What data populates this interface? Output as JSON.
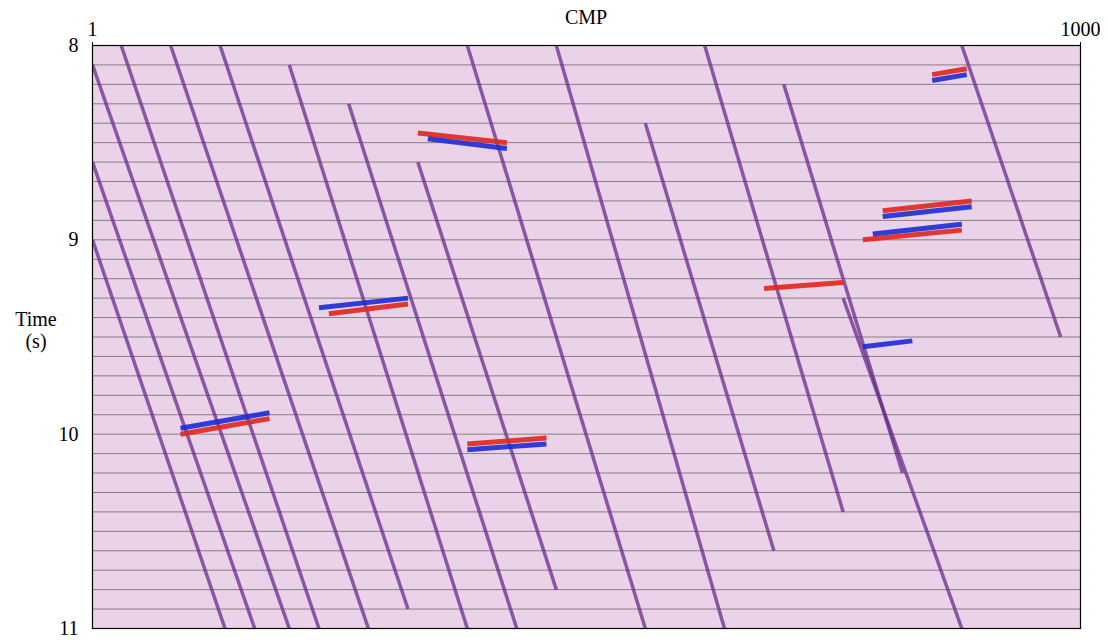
{
  "chart_data": {
    "type": "seismic_section",
    "x_label": "CMP",
    "y_label": "Time (s)",
    "xlim": [
      1,
      1000
    ],
    "xticks": [
      1,
      1000
    ],
    "ylim": [
      8,
      11
    ],
    "yticks": [
      8,
      9,
      10,
      11
    ],
    "grid": true,
    "y_gridlines": [
      8.0,
      8.1,
      8.2,
      8.3,
      8.4,
      8.5,
      8.6,
      8.7,
      8.8,
      8.9,
      9.0,
      9.1,
      9.2,
      9.3,
      9.4,
      9.5,
      9.6,
      9.7,
      9.8,
      9.9,
      10.0,
      10.1,
      10.2,
      10.3,
      10.4,
      10.5,
      10.6,
      10.7,
      10.8,
      10.9,
      11.0
    ],
    "noise_color": "#6a2c8c",
    "noise_events": [
      [
        1,
        8.1,
        200,
        11.0
      ],
      [
        1,
        8.6,
        165,
        11.0
      ],
      [
        1,
        9.0,
        135,
        11.0
      ],
      [
        30,
        8.0,
        230,
        11.0
      ],
      [
        80,
        8.0,
        280,
        11.0
      ],
      [
        130,
        8.0,
        320,
        10.9
      ],
      [
        200,
        8.1,
        380,
        11.0
      ],
      [
        260,
        8.3,
        430,
        11.0
      ],
      [
        330,
        8.6,
        470,
        10.8
      ],
      [
        380,
        8.0,
        560,
        11.0
      ],
      [
        470,
        8.0,
        640,
        11.0
      ],
      [
        560,
        8.4,
        690,
        10.6
      ],
      [
        620,
        8.0,
        760,
        10.4
      ],
      [
        700,
        8.2,
        820,
        10.2
      ],
      [
        760,
        9.3,
        880,
        11.0
      ],
      [
        880,
        8.0,
        980,
        9.5
      ]
    ],
    "reflectors": [
      {
        "x": [
          800,
          890
        ],
        "t": [
          8.85,
          8.8
        ],
        "color": "#e0261c"
      },
      {
        "x": [
          800,
          890
        ],
        "t": [
          8.88,
          8.83
        ],
        "color": "#1c2bd6"
      },
      {
        "x": [
          780,
          880
        ],
        "t": [
          9.0,
          8.95
        ],
        "color": "#e0261c"
      },
      {
        "x": [
          790,
          880
        ],
        "t": [
          8.97,
          8.92
        ],
        "color": "#1c2bd6"
      },
      {
        "x": [
          850,
          885
        ],
        "t": [
          8.15,
          8.12
        ],
        "color": "#e0261c"
      },
      {
        "x": [
          850,
          885
        ],
        "t": [
          8.18,
          8.15
        ],
        "color": "#1c2bd6"
      },
      {
        "x": [
          330,
          420
        ],
        "t": [
          8.45,
          8.5
        ],
        "color": "#e0261c"
      },
      {
        "x": [
          340,
          420
        ],
        "t": [
          8.48,
          8.53
        ],
        "color": "#1c2bd6"
      },
      {
        "x": [
          230,
          320
        ],
        "t": [
          9.35,
          9.3
        ],
        "color": "#1c2bd6"
      },
      {
        "x": [
          240,
          320
        ],
        "t": [
          9.38,
          9.33
        ],
        "color": "#e0261c"
      },
      {
        "x": [
          90,
          180
        ],
        "t": [
          10.0,
          9.92
        ],
        "color": "#e0261c"
      },
      {
        "x": [
          90,
          180
        ],
        "t": [
          9.97,
          9.89
        ],
        "color": "#1c2bd6"
      },
      {
        "x": [
          380,
          460
        ],
        "t": [
          10.05,
          10.02
        ],
        "color": "#e0261c"
      },
      {
        "x": [
          380,
          460
        ],
        "t": [
          10.08,
          10.05
        ],
        "color": "#1c2bd6"
      },
      {
        "x": [
          680,
          760
        ],
        "t": [
          9.25,
          9.22
        ],
        "color": "#e0261c"
      },
      {
        "x": [
          780,
          830
        ],
        "t": [
          9.55,
          9.52
        ],
        "color": "#1c2bd6"
      }
    ]
  }
}
